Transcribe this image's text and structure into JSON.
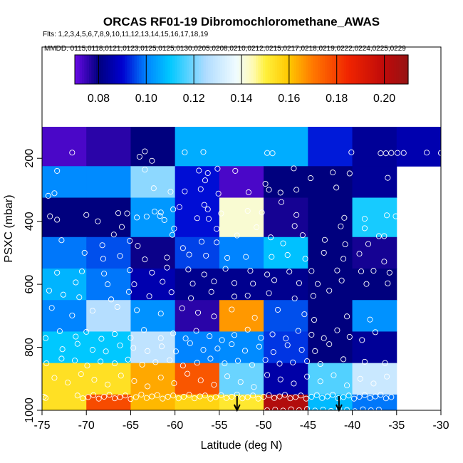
{
  "chart_data": {
    "type": "heatmap",
    "title": "ORCAS RF01-19 Dibromochloromethane_AWAS",
    "flights_text": "Flts: 1,2,3,4,5,6,7,8,9,10,11,12,13,14,15,16,17,18,19",
    "mmdd_text": "MMDD: 0115,0118,0121,0123,0125,0125,0130,0205,0208,0210,0212,0215,0217,0218,0219,0222,0224,0225,0229",
    "xlabel": "Latitude (deg N)",
    "ylabel": "PSXC (mbar)",
    "xlim": [
      -75,
      -30
    ],
    "ylim": [
      1000,
      100
    ],
    "x_ticks": [
      -75,
      -70,
      -65,
      -60,
      -55,
      -50,
      -45,
      -40,
      -35,
      -30
    ],
    "y_ticks": [
      200,
      400,
      600,
      800,
      1000
    ],
    "colorbar": {
      "range": [
        0.07,
        0.21
      ],
      "ticks": [
        0.08,
        0.1,
        0.12,
        0.14,
        0.16,
        0.18,
        0.2
      ],
      "tick_labels": [
        "0.08",
        "0.10",
        "0.12",
        "0.14",
        "0.16",
        "0.18",
        "0.20"
      ]
    },
    "lat_bin_edges": [
      -75,
      -70,
      -65,
      -60,
      -55,
      -50,
      -45,
      -40,
      -35,
      -30
    ],
    "pressure_bin_edges": [
      100,
      225,
      325,
      450,
      550,
      650,
      750,
      850,
      950,
      1050
    ],
    "cells": [
      [
        0.073,
        0.076,
        0.08,
        0.106,
        0.106,
        0.106,
        0.092,
        0.083,
        0.086
      ],
      [
        0.101,
        0.101,
        0.122,
        0.091,
        0.073,
        0.08,
        0.08,
        0.083,
        null
      ],
      [
        0.08,
        0.08,
        0.103,
        0.091,
        0.142,
        0.078,
        0.08,
        0.112,
        null
      ],
      [
        0.099,
        0.096,
        0.079,
        0.095,
        0.1,
        0.109,
        0.08,
        0.078,
        null
      ],
      [
        0.107,
        0.099,
        0.086,
        0.082,
        0.082,
        0.082,
        0.08,
        0.08,
        null
      ],
      [
        0.1,
        0.126,
        0.102,
        0.076,
        0.166,
        0.096,
        0.08,
        0.102,
        null
      ],
      [
        0.11,
        0.11,
        0.128,
        0.1,
        0.101,
        0.094,
        0.08,
        0.083,
        null
      ],
      [
        0.154,
        0.154,
        0.164,
        0.176,
        0.119,
        0.085,
        0.117,
        0.13,
        null
      ],
      [
        0.154,
        0.178,
        0.162,
        0.157,
        0.152,
        0.203,
        0.108,
        0.099,
        null
      ]
    ],
    "arrows_lat": [
      -53,
      -41.5
    ],
    "points": [
      [
        -71.6,
        182
      ],
      [
        -63.4,
        178
      ],
      [
        -58.9,
        181
      ],
      [
        -56.8,
        180
      ],
      [
        -49.6,
        183
      ],
      [
        -49.0,
        184
      ],
      [
        -40.1,
        181
      ],
      [
        -36.8,
        184
      ],
      [
        -36.2,
        184
      ],
      [
        -35.6,
        183
      ],
      [
        -34.9,
        183
      ],
      [
        -34.2,
        183
      ],
      [
        -31.6,
        182
      ],
      [
        -30.0,
        183
      ],
      [
        -64.0,
        195
      ],
      [
        -62.6,
        208
      ],
      [
        -73.3,
        240
      ],
      [
        -63.4,
        236
      ],
      [
        -57.3,
        239
      ],
      [
        -56.3,
        247
      ],
      [
        -55.2,
        233
      ],
      [
        -53.2,
        240
      ],
      [
        -46.6,
        232
      ],
      [
        -42.2,
        245
      ],
      [
        -40.3,
        248
      ],
      [
        -56.6,
        270
      ],
      [
        -49.8,
        281
      ],
      [
        -49.4,
        300
      ],
      [
        -46.3,
        300
      ],
      [
        -41.8,
        293
      ],
      [
        -36.0,
        262
      ],
      [
        -44.7,
        263
      ],
      [
        -74.3,
        319
      ],
      [
        -73.6,
        311
      ],
      [
        -62.4,
        295
      ],
      [
        -60.5,
        306
      ],
      [
        -58.9,
        305
      ],
      [
        -57.1,
        298
      ],
      [
        -55.1,
        312
      ],
      [
        -51.7,
        308
      ],
      [
        -48.1,
        309
      ],
      [
        -48.0,
        339
      ],
      [
        -60.2,
        362
      ],
      [
        -61.6,
        372
      ],
      [
        -59.5,
        355
      ],
      [
        -56.7,
        348
      ],
      [
        -56.3,
        362
      ],
      [
        -54.8,
        375
      ],
      [
        -63.2,
        385
      ],
      [
        -57.5,
        390
      ],
      [
        -74.1,
        384
      ],
      [
        -70.0,
        380
      ],
      [
        -66.4,
        374
      ],
      [
        -64.3,
        388
      ],
      [
        -62.3,
        369
      ],
      [
        -61.7,
        383
      ],
      [
        -61.2,
        396
      ],
      [
        -56.2,
        392
      ],
      [
        -46.3,
        380
      ],
      [
        -40.9,
        389
      ],
      [
        -38.6,
        392
      ],
      [
        -36.1,
        381
      ],
      [
        -35.1,
        384
      ],
      [
        -73.3,
        395
      ],
      [
        -68.7,
        400
      ],
      [
        -65.4,
        375
      ],
      [
        -51.8,
        367
      ],
      [
        -50.2,
        372
      ],
      [
        -66.0,
        418
      ],
      [
        -60.1,
        423
      ],
      [
        -55.3,
        424
      ],
      [
        -50.8,
        419
      ],
      [
        -46.5,
        415
      ],
      [
        -41.3,
        416
      ],
      [
        -38.6,
        422
      ],
      [
        -72.8,
        460
      ],
      [
        -68.2,
        476
      ],
      [
        -66.9,
        442
      ],
      [
        -65.1,
        462
      ],
      [
        -64.2,
        478
      ],
      [
        -60.3,
        443
      ],
      [
        -59.1,
        485
      ],
      [
        -57.0,
        465
      ],
      [
        -55.3,
        467
      ],
      [
        -53.0,
        445
      ],
      [
        -49.2,
        451
      ],
      [
        -47.8,
        470
      ],
      [
        -45.6,
        444
      ],
      [
        -43.1,
        459
      ],
      [
        -40.8,
        473
      ],
      [
        -38.2,
        472
      ],
      [
        -37.0,
        447
      ],
      [
        -36.4,
        447
      ],
      [
        -70.2,
        500
      ],
      [
        -68.1,
        519
      ],
      [
        -66.2,
        510
      ],
      [
        -63.4,
        521
      ],
      [
        -60.9,
        515
      ],
      [
        -58.4,
        506
      ],
      [
        -56.5,
        509
      ],
      [
        -54.1,
        516
      ],
      [
        -52.0,
        513
      ],
      [
        -49.1,
        513
      ],
      [
        -47.3,
        507
      ],
      [
        -45.3,
        519
      ],
      [
        -43.2,
        500
      ],
      [
        -41.0,
        519
      ],
      [
        -39.2,
        503
      ],
      [
        -36.4,
        528
      ],
      [
        -73.3,
        563
      ],
      [
        -70.5,
        559
      ],
      [
        -68.0,
        566
      ],
      [
        -65.1,
        555
      ],
      [
        -62.6,
        563
      ],
      [
        -60.9,
        547
      ],
      [
        -58.5,
        553
      ],
      [
        -56.7,
        569
      ],
      [
        -54.3,
        551
      ],
      [
        -51.5,
        557
      ],
      [
        -49.6,
        569
      ],
      [
        -47.1,
        560
      ],
      [
        -44.6,
        558
      ],
      [
        -41.7,
        556
      ],
      [
        -39.0,
        559
      ],
      [
        -37.6,
        557
      ],
      [
        -35.8,
        563
      ],
      [
        -71.2,
        594
      ],
      [
        -67.6,
        600
      ],
      [
        -64.6,
        600
      ],
      [
        -61.4,
        592
      ],
      [
        -58.0,
        598
      ],
      [
        -55.6,
        591
      ],
      [
        -53.3,
        596
      ],
      [
        -51.2,
        598
      ],
      [
        -48.8,
        587
      ],
      [
        -46.0,
        596
      ],
      [
        -43.9,
        599
      ],
      [
        -41.2,
        588
      ],
      [
        -38.4,
        599
      ],
      [
        -36.0,
        597
      ],
      [
        -74.2,
        620
      ],
      [
        -72.6,
        633
      ],
      [
        -70.8,
        641
      ],
      [
        -67.2,
        648
      ],
      [
        -65.2,
        624
      ],
      [
        -62.9,
        638
      ],
      [
        -60.4,
        625
      ],
      [
        -58.2,
        644
      ],
      [
        -55.9,
        624
      ],
      [
        -53.3,
        639
      ],
      [
        -51.8,
        636
      ],
      [
        -49.4,
        628
      ],
      [
        -46.5,
        645
      ],
      [
        -44.4,
        637
      ],
      [
        -42.6,
        620
      ],
      [
        -73.9,
        675
      ],
      [
        -71.6,
        699
      ],
      [
        -69.3,
        684
      ],
      [
        -66.5,
        672
      ],
      [
        -64.3,
        682
      ],
      [
        -61.6,
        693
      ],
      [
        -59.2,
        676
      ],
      [
        -57.4,
        690
      ],
      [
        -55.6,
        702
      ],
      [
        -53.6,
        680
      ],
      [
        -51.0,
        706
      ],
      [
        -48.4,
        681
      ],
      [
        -45.4,
        695
      ],
      [
        -44.3,
        713
      ],
      [
        -40.6,
        702
      ],
      [
        -38.0,
        712
      ],
      [
        -74.6,
        771
      ],
      [
        -73.0,
        749
      ],
      [
        -71.2,
        766
      ],
      [
        -70.0,
        751
      ],
      [
        -68.3,
        773
      ],
      [
        -66.8,
        758
      ],
      [
        -65.0,
        770
      ],
      [
        -63.5,
        745
      ],
      [
        -61.6,
        771
      ],
      [
        -60.2,
        756
      ],
      [
        -58.8,
        772
      ],
      [
        -57.6,
        748
      ],
      [
        -56.1,
        765
      ],
      [
        -54.7,
        777
      ],
      [
        -53.3,
        761
      ],
      [
        -51.8,
        744
      ],
      [
        -50.3,
        770
      ],
      [
        -49.0,
        759
      ],
      [
        -47.5,
        772
      ],
      [
        -46.1,
        748
      ],
      [
        -44.6,
        760
      ],
      [
        -43.2,
        771
      ],
      [
        -41.7,
        746
      ],
      [
        -40.3,
        767
      ],
      [
        -38.9,
        777
      ],
      [
        -37.4,
        752
      ],
      [
        -72.7,
        806
      ],
      [
        -71.0,
        789
      ],
      [
        -69.3,
        808
      ],
      [
        -67.8,
        813
      ],
      [
        -66.2,
        794
      ],
      [
        -64.7,
        802
      ],
      [
        -63.1,
        812
      ],
      [
        -61.5,
        797
      ],
      [
        -59.9,
        813
      ],
      [
        -58.3,
        787
      ],
      [
        -56.8,
        808
      ],
      [
        -55.2,
        804
      ],
      [
        -53.6,
        790
      ],
      [
        -52.1,
        811
      ],
      [
        -50.5,
        798
      ],
      [
        -48.9,
        815
      ],
      [
        -47.3,
        793
      ],
      [
        -45.7,
        808
      ],
      [
        -44.2,
        812
      ],
      [
        -42.6,
        790
      ],
      [
        -74.5,
        851
      ],
      [
        -72.8,
        836
      ],
      [
        -71.3,
        842
      ],
      [
        -69.9,
        858
      ],
      [
        -68.4,
        845
      ],
      [
        -66.8,
        851
      ],
      [
        -65.3,
        839
      ],
      [
        -63.7,
        855
      ],
      [
        -62.2,
        847
      ],
      [
        -60.6,
        841
      ],
      [
        -59.1,
        858
      ],
      [
        -57.5,
        849
      ],
      [
        -56.0,
        836
      ],
      [
        -54.4,
        851
      ],
      [
        -52.9,
        843
      ],
      [
        -51.3,
        856
      ],
      [
        -49.8,
        840
      ],
      [
        -48.2,
        852
      ],
      [
        -46.7,
        848
      ],
      [
        -45.1,
        844
      ],
      [
        -43.6,
        853
      ],
      [
        -41.0,
        838
      ],
      [
        -38.6,
        846
      ],
      [
        -36.3,
        850
      ],
      [
        -73.6,
        897
      ],
      [
        -72.1,
        912
      ],
      [
        -70.6,
        885
      ],
      [
        -69.1,
        903
      ],
      [
        -67.6,
        918
      ],
      [
        -66.1,
        890
      ],
      [
        -64.6,
        907
      ],
      [
        -63.1,
        924
      ],
      [
        -61.6,
        896
      ],
      [
        -60.1,
        914
      ],
      [
        -58.6,
        884
      ],
      [
        -57.1,
        905
      ],
      [
        -55.6,
        919
      ],
      [
        -54.1,
        892
      ],
      [
        -52.6,
        910
      ],
      [
        -51.1,
        926
      ],
      [
        -49.6,
        888
      ],
      [
        -48.1,
        902
      ],
      [
        -46.6,
        915
      ],
      [
        -45.1,
        893
      ],
      [
        -43.6,
        908
      ],
      [
        -42.1,
        889
      ],
      [
        -40.6,
        921
      ],
      [
        -39.1,
        900
      ],
      [
        -37.6,
        915
      ],
      [
        -36.1,
        893
      ],
      [
        -74.8,
        957
      ],
      [
        -74.6,
        961
      ],
      [
        -71.0,
        953
      ],
      [
        -70.4,
        962
      ],
      [
        -69.8,
        958
      ],
      [
        -69.2,
        952
      ],
      [
        -68.6,
        963
      ],
      [
        -68.0,
        957
      ],
      [
        -67.4,
        951
      ],
      [
        -66.8,
        962
      ],
      [
        -66.2,
        958
      ],
      [
        -65.6,
        953
      ],
      [
        -65.0,
        964
      ],
      [
        -64.4,
        958
      ],
      [
        -63.8,
        950
      ],
      [
        -63.2,
        961
      ],
      [
        -62.6,
        956
      ],
      [
        -62.0,
        952
      ],
      [
        -61.4,
        963
      ],
      [
        -60.8,
        957
      ],
      [
        -60.2,
        953
      ],
      [
        -59.6,
        962
      ],
      [
        -59.0,
        957
      ],
      [
        -58.4,
        951
      ],
      [
        -57.8,
        962
      ],
      [
        -57.2,
        956
      ],
      [
        -56.6,
        953
      ],
      [
        -56.0,
        963
      ],
      [
        -55.4,
        958
      ],
      [
        -54.8,
        952
      ],
      [
        -54.2,
        961
      ],
      [
        -53.6,
        957
      ],
      [
        -53.0,
        950
      ],
      [
        -52.4,
        962
      ],
      [
        -51.8,
        958
      ],
      [
        -51.2,
        953
      ],
      [
        -50.6,
        963
      ],
      [
        -50.0,
        957
      ],
      [
        -49.4,
        952
      ],
      [
        -48.8,
        961
      ],
      [
        -48.2,
        956
      ],
      [
        -47.6,
        951
      ],
      [
        -47.0,
        962
      ],
      [
        -46.4,
        958
      ],
      [
        -45.8,
        953
      ],
      [
        -45.2,
        963
      ],
      [
        -44.6,
        957
      ],
      [
        -44.0,
        952
      ],
      [
        -43.4,
        961
      ],
      [
        -42.8,
        956
      ],
      [
        -42.2,
        951
      ],
      [
        -41.6,
        962
      ],
      [
        -41.0,
        958
      ],
      [
        -40.4,
        953
      ],
      [
        -39.8,
        963
      ],
      [
        -39.2,
        957
      ],
      [
        -38.6,
        952
      ],
      [
        -38.0,
        961
      ],
      [
        -37.4,
        956
      ],
      [
        -36.8,
        951
      ],
      [
        -36.2,
        962
      ],
      [
        -35.6,
        958
      ],
      [
        -49.6,
        1000
      ],
      [
        -48.7,
        998
      ],
      [
        -47.8,
        1001
      ],
      [
        -46.9,
        997
      ],
      [
        -46.0,
        1000
      ],
      [
        -45.1,
        996
      ],
      [
        -44.2,
        1001
      ],
      [
        -43.3,
        998
      ],
      [
        -42.4,
        1002
      ],
      [
        -41.5,
        996
      ],
      [
        -40.6,
        999
      ],
      [
        -39.7,
        1003
      ],
      [
        -38.8,
        997
      ],
      [
        -37.9,
        1000
      ],
      [
        -37.0,
        998
      ]
    ]
  }
}
